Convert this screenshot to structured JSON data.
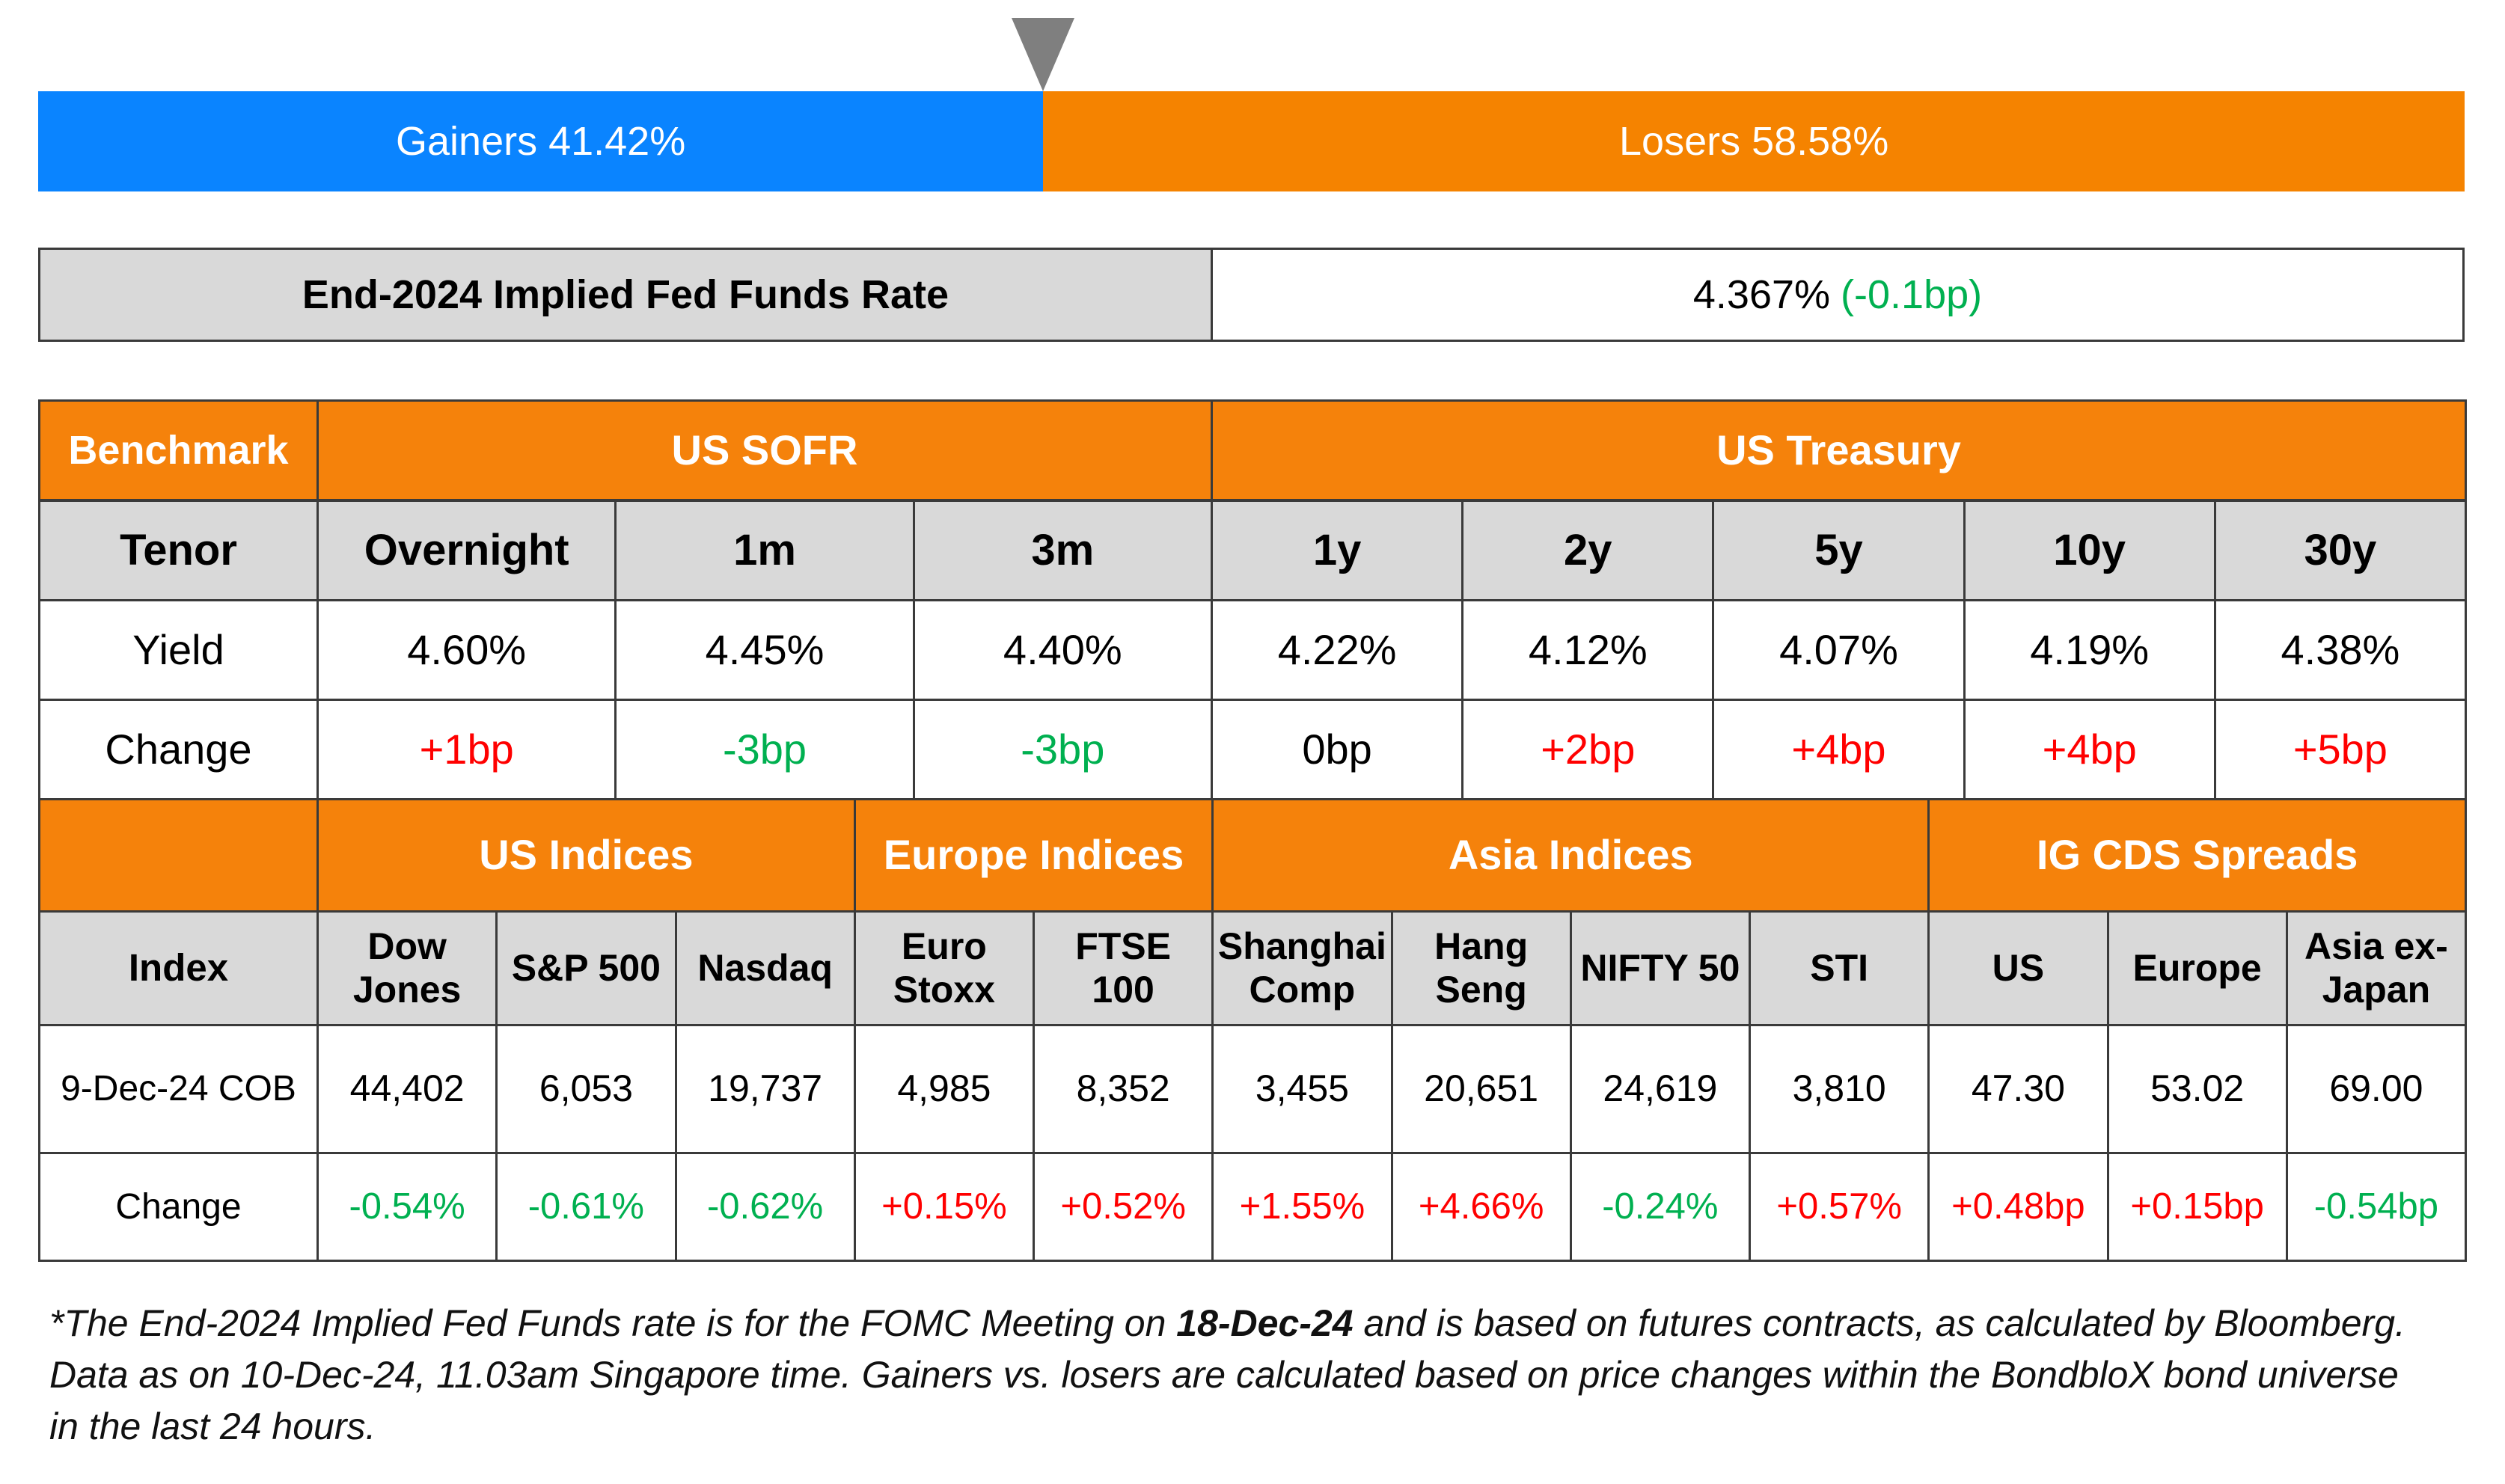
{
  "gainers_losers": {
    "gainers": {
      "text": "Gainers 41.42%",
      "value": 41.42
    },
    "losers": {
      "text": "Losers 58.58%",
      "value": 58.58
    }
  },
  "fed_funds": {
    "label": "End-2024 Implied Fed Funds Rate",
    "rate": "4.367%",
    "change": "(-0.1bp)"
  },
  "rates_table": {
    "corner": "Benchmark",
    "tenor_label": "Tenor",
    "yield_label": "Yield",
    "change_label": "Change",
    "groups": [
      {
        "label": "US SOFR",
        "tenors": [
          "Overnight",
          "1m",
          "3m"
        ],
        "yields": [
          "4.60%",
          "4.45%",
          "4.40%"
        ],
        "changes": [
          "+1bp",
          "-3bp",
          "-3bp"
        ]
      },
      {
        "label": "US Treasury",
        "tenors": [
          "1y",
          "2y",
          "5y",
          "10y",
          "30y"
        ],
        "yields": [
          "4.22%",
          "4.12%",
          "4.07%",
          "4.19%",
          "4.38%"
        ],
        "changes": [
          "0bp",
          "+2bp",
          "+4bp",
          "+4bp",
          "+5bp"
        ]
      }
    ]
  },
  "markets_table": {
    "index_label": "Index",
    "date_label": "9-Dec-24 COB",
    "change_label": "Change",
    "groups": [
      {
        "label": "US Indices",
        "columns": [
          "Dow Jones",
          "S&P 500",
          "Nasdaq"
        ],
        "values": [
          "44,402",
          "6,053",
          "19,737"
        ],
        "changes": [
          "-0.54%",
          "-0.61%",
          "-0.62%"
        ]
      },
      {
        "label": "Europe Indices",
        "columns": [
          "Euro Stoxx",
          "FTSE 100"
        ],
        "values": [
          "4,985",
          "8,352"
        ],
        "changes": [
          "+0.15%",
          "+0.52%"
        ]
      },
      {
        "label": "Asia Indices",
        "columns": [
          "Shanghai Comp",
          "Hang Seng",
          "NIFTY 50",
          "STI"
        ],
        "values": [
          "3,455",
          "20,651",
          "24,619",
          "3,810"
        ],
        "changes": [
          "+1.55%",
          "+4.66%",
          "-0.24%",
          "+0.57%"
        ]
      },
      {
        "label": "IG CDS Spreads",
        "columns": [
          "US",
          "Europe",
          "Asia ex-Japan"
        ],
        "values": [
          "47.30",
          "53.02",
          "69.00"
        ],
        "changes": [
          "+0.48bp",
          "+0.15bp",
          "-0.54bp"
        ]
      }
    ]
  },
  "footnote": {
    "before": "*The End-2024 Implied Fed Funds rate is for the FOMC Meeting on ",
    "bold": "18-Dec-24",
    "after": " and is based on futures contracts, as calculated by Bloomberg. Data as on 10-Dec-24, 11.03am Singapore time. Gainers vs. losers are calculated based on price changes within the BondbloX bond universe in the last 24 hours."
  }
}
